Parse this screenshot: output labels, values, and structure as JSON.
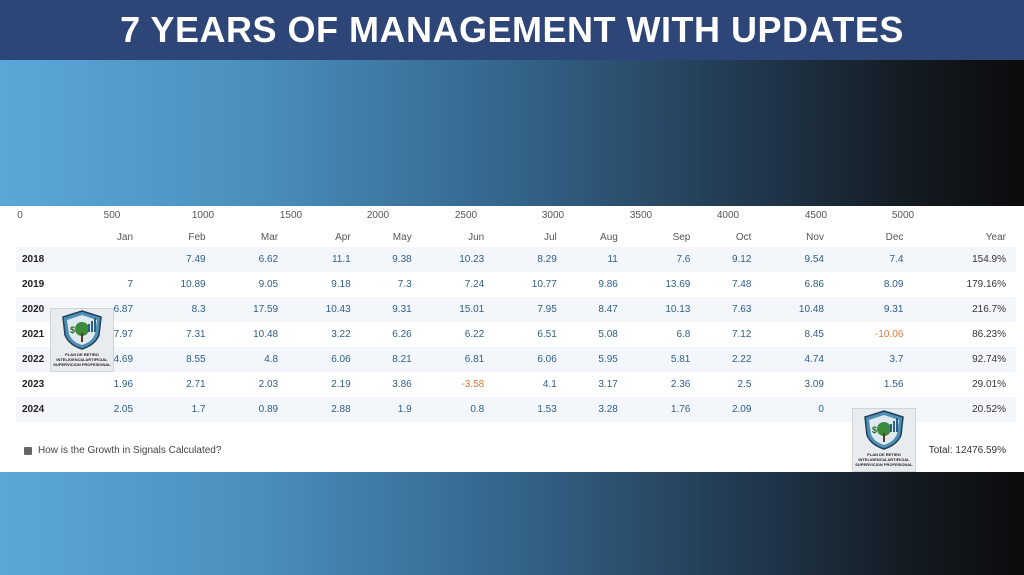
{
  "title": "7 YEARS OF MANAGEMENT WITH UPDATES",
  "scale": [
    "0",
    "500",
    "1000",
    "1500",
    "2000",
    "2500",
    "3000",
    "3500",
    "4000",
    "4500",
    "5000"
  ],
  "headers": [
    "Jan",
    "Feb",
    "Mar",
    "Apr",
    "May",
    "Jun",
    "Jul",
    "Aug",
    "Sep",
    "Oct",
    "Nov",
    "Dec",
    "Year"
  ],
  "rows": [
    {
      "year": "2018",
      "cells": [
        "",
        "7.49",
        "6.62",
        "11.1",
        "9.38",
        "10.23",
        "8.29",
        "11",
        "7.6",
        "9.12",
        "9.54",
        "7.4",
        "154.9%"
      ]
    },
    {
      "year": "2019",
      "cells": [
        "7",
        "10.89",
        "9.05",
        "9.18",
        "7.3",
        "7.24",
        "10.77",
        "9.86",
        "13.69",
        "7.48",
        "6.86",
        "8.09",
        "179.16%"
      ]
    },
    {
      "year": "2020",
      "cells": [
        "6.87",
        "8.3",
        "17.59",
        "10.43",
        "9.31",
        "15.01",
        "7.95",
        "8.47",
        "10.13",
        "7.63",
        "10.48",
        "9.31",
        "216.7%"
      ]
    },
    {
      "year": "2021",
      "cells": [
        "7.97",
        "7.31",
        "10.48",
        "3.22",
        "6.26",
        "6.22",
        "6.51",
        "5.08",
        "6.8",
        "7.12",
        "8.45",
        "-10.06",
        "86.23%"
      ]
    },
    {
      "year": "2022",
      "cells": [
        "4.69",
        "8.55",
        "4.8",
        "6.06",
        "8.21",
        "6.81",
        "6.06",
        "5.95",
        "5.81",
        "2.22",
        "4.74",
        "3.7",
        "92.74%"
      ]
    },
    {
      "year": "2023",
      "cells": [
        "1.96",
        "2.71",
        "2.03",
        "2.19",
        "3.86",
        "-3.58",
        "4.1",
        "3.17",
        "2.36",
        "2.5",
        "3.09",
        "1.56",
        "29.01%"
      ]
    },
    {
      "year": "2024",
      "cells": [
        "2.05",
        "1.7",
        "0.89",
        "2.88",
        "1.9",
        "0.8",
        "1.53",
        "3.28",
        "1.76",
        "2.09",
        "0",
        "",
        ""
      ]
    }
  ],
  "row_2024_year_value": "20.52%",
  "help_text": "How is the Growth in Signals Calculated?",
  "total_text": "Total: 12476.59%",
  "logo_caption": [
    "PLAN DE RETIRO",
    "INTELIGENCIA ARTIFICIAL",
    "SUPERVICION PROFESIONAL"
  ],
  "colors": {
    "title_bg": "#2e4577",
    "positive": "#2e5f87",
    "negative": "#d87a3c"
  }
}
